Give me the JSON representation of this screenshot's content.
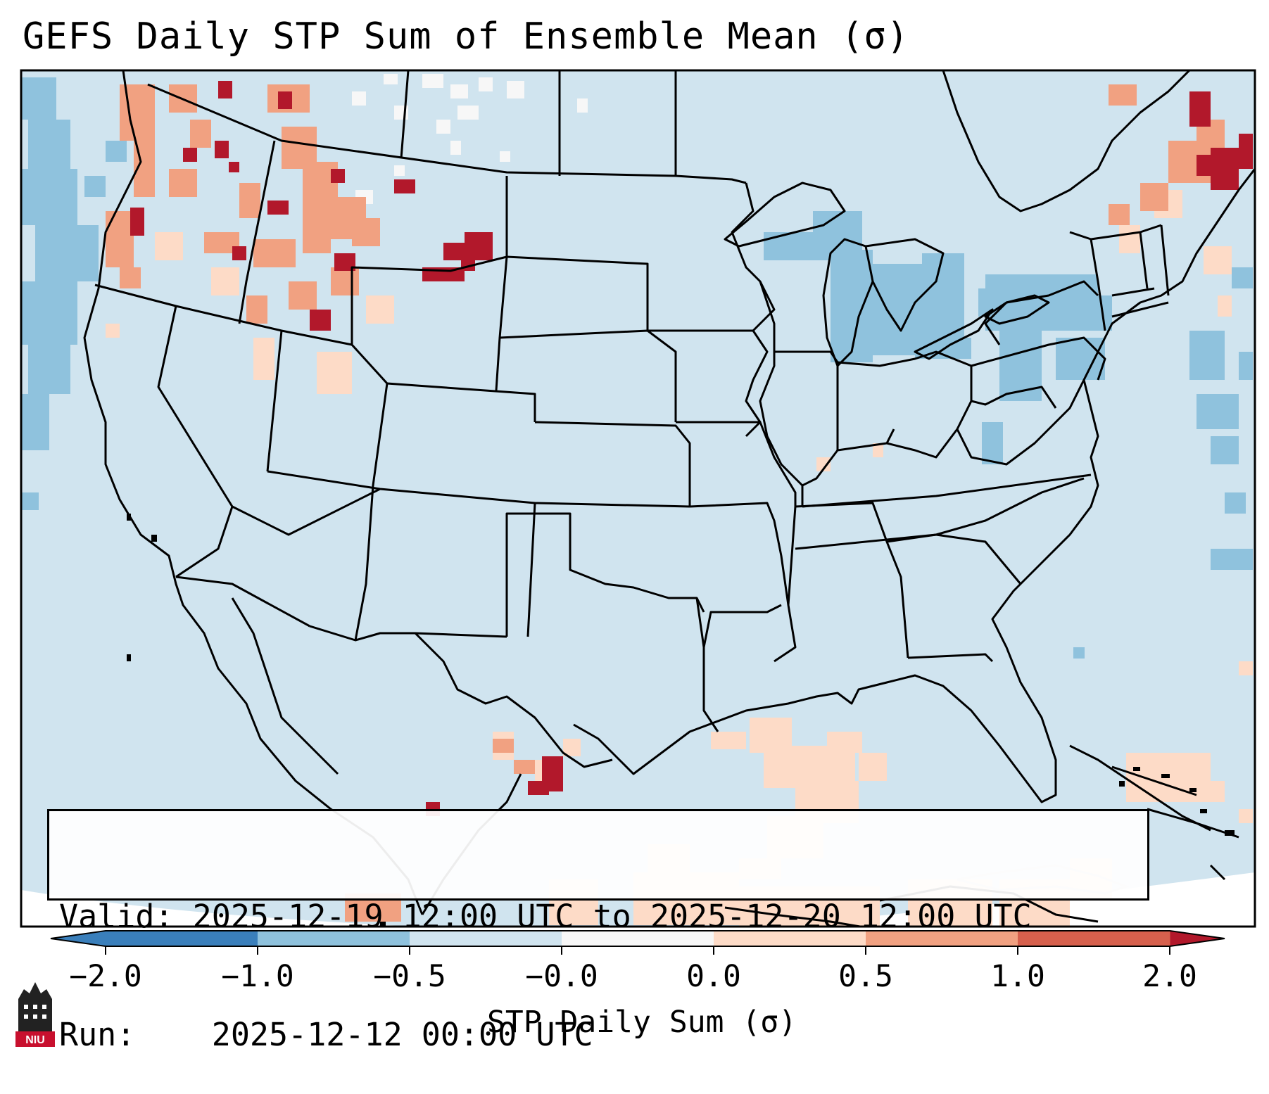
{
  "title": "GEFS Daily STP Sum of Ensemble Mean (σ)",
  "info": {
    "valid_label": "Valid:",
    "valid_value": "2025-12-19 12:00 UTC to 2025-12-20 12:00 UTC",
    "run_label": "Run:",
    "run_value": "2025-12-12 00:00 UTC"
  },
  "colorbar": {
    "label": "STP Daily Sum (σ)",
    "ticks": [
      "−2.0",
      "−1.0",
      "−0.5",
      "−0.0",
      "0.0",
      "0.5",
      "1.0",
      "2.0"
    ],
    "colors": [
      "#3a7fbb",
      "#8fc2dd",
      "#d0e4ef",
      "#f7f7f7",
      "#fddbc7",
      "#f1a181",
      "#d6604d",
      "#b2182b"
    ],
    "extend": "both"
  },
  "logo": {
    "text": "NIU",
    "color": "#c8102e"
  },
  "map": {
    "projection": "Lambert conformal",
    "region": "Continental United States",
    "background_color": "#d0e4ef"
  }
}
